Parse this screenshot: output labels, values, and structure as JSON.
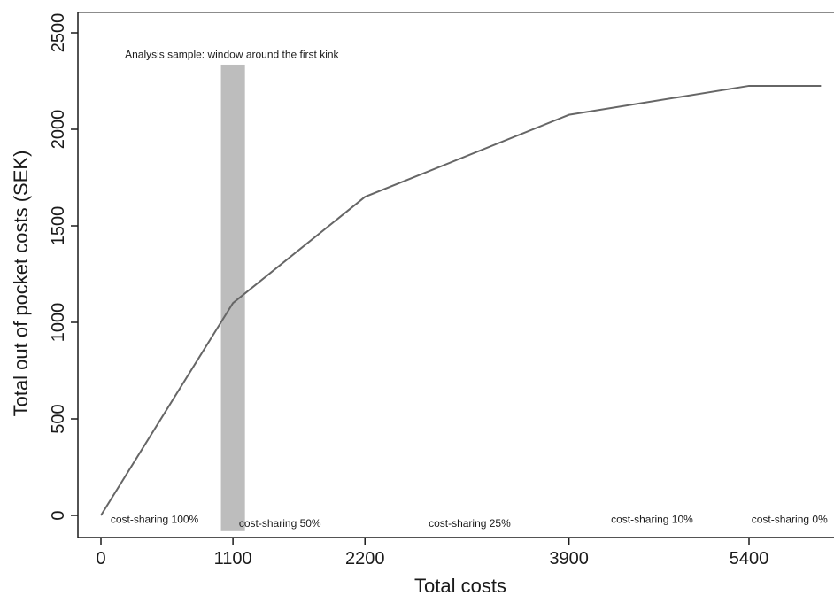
{
  "chart_data": {
    "type": "line",
    "xlabel": "Total costs",
    "ylabel": "Total out of pocket costs (SEK)",
    "xlim": [
      -100,
      6000
    ],
    "ylim": [
      -100,
      2600
    ],
    "x_ticks": [
      0,
      1100,
      2200,
      3900,
      5400
    ],
    "y_ticks": [
      0,
      500,
      1000,
      1500,
      2000,
      2500
    ],
    "series": [
      {
        "x": [
          0,
          1100,
          2200,
          3900,
          5400,
          6000
        ],
        "y": [
          0,
          1100,
          1650,
          2075,
          2225,
          2225
        ]
      }
    ],
    "shaded_band": {
      "x0": 1000,
      "x1": 1200,
      "y_top": 2335
    },
    "annotations": [
      {
        "text": "Analysis sample: window around the first kink",
        "x": 200,
        "y": 2370
      },
      {
        "text": "cost-sharing 100%",
        "x": 80,
        "y": -40
      },
      {
        "text": "cost-sharing 50%",
        "x": 1150,
        "y": -60
      },
      {
        "text": "cost-sharing 25%",
        "x": 2730,
        "y": -60
      },
      {
        "text": "cost-sharing 10%",
        "x": 4250,
        "y": -40
      },
      {
        "text": "cost-sharing 0%",
        "x": 5420,
        "y": -40
      }
    ],
    "grid": false,
    "colors": {
      "line": "#666666",
      "band": "#bdbdbd",
      "axis": "#1a1a1a"
    }
  }
}
